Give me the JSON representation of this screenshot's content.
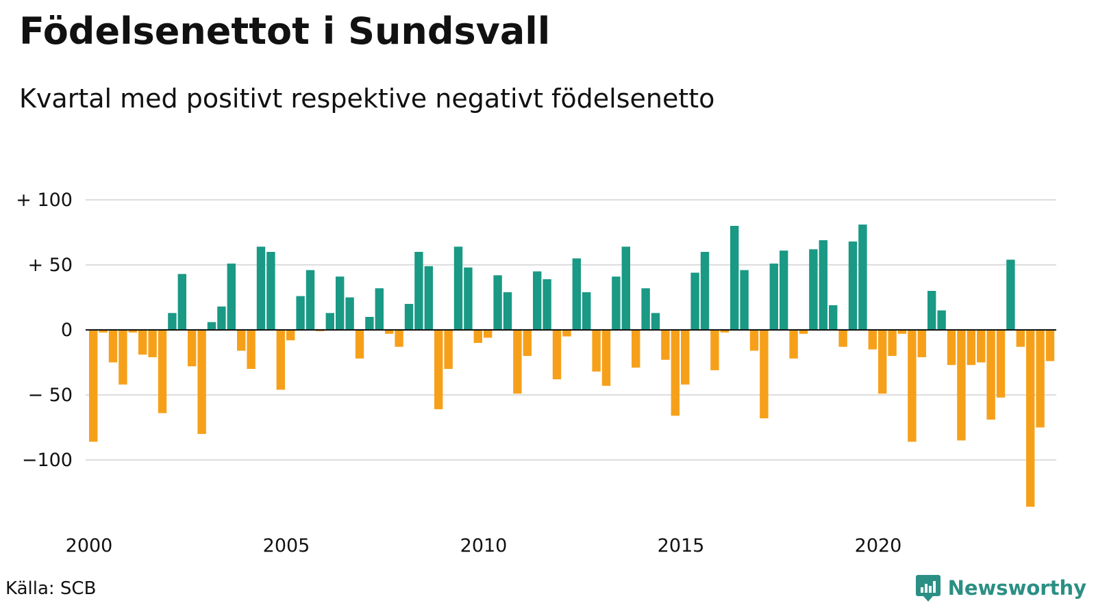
{
  "title": "Födelsenettot i Sundsvall",
  "subtitle": "Kvartal med positivt respektive negativt födelsenetto",
  "source": "Källa: SCB",
  "brand": "Newsworthy",
  "colors": {
    "positive": "#1a9985",
    "negative": "#f6a01a",
    "grid": "#dddddd",
    "axis": "#111111",
    "brand": "#2b8f84"
  },
  "chart_data": {
    "type": "bar",
    "x_start_year": 2000,
    "x_ticks": [
      "2000",
      "2005",
      "2010",
      "2015",
      "2020"
    ],
    "y_ticks": [
      {
        "value": 100,
        "label": "+ 100"
      },
      {
        "value": 50,
        "label": "+  50"
      },
      {
        "value": 0,
        "label": "0"
      },
      {
        "value": -50,
        "label": "− 50"
      },
      {
        "value": -100,
        "label": "−100"
      }
    ],
    "ylim": [
      -140,
      100
    ],
    "grid": true,
    "values": [
      -86,
      -2,
      -25,
      -42,
      -2,
      -19,
      -21,
      -64,
      13,
      43,
      -28,
      -80,
      6,
      18,
      51,
      -16,
      -30,
      64,
      60,
      -46,
      -8,
      26,
      46,
      -1,
      13,
      41,
      25,
      -22,
      10,
      32,
      -3,
      -13,
      20,
      60,
      49,
      -61,
      -30,
      64,
      48,
      -10,
      -6,
      42,
      29,
      -49,
      -20,
      45,
      39,
      -38,
      -5,
      55,
      29,
      -32,
      -43,
      41,
      64,
      -29,
      32,
      13,
      -23,
      -66,
      -42,
      44,
      60,
      -31,
      -2,
      80,
      46,
      -16,
      -68,
      51,
      61,
      -22,
      -3,
      62,
      69,
      19,
      -13,
      68,
      81,
      -15,
      -49,
      -20,
      -3,
      -86,
      -21,
      30,
      15,
      -27,
      -85,
      -27,
      -25,
      -69,
      -52,
      54,
      -13,
      -136,
      -75,
      -24
    ]
  }
}
